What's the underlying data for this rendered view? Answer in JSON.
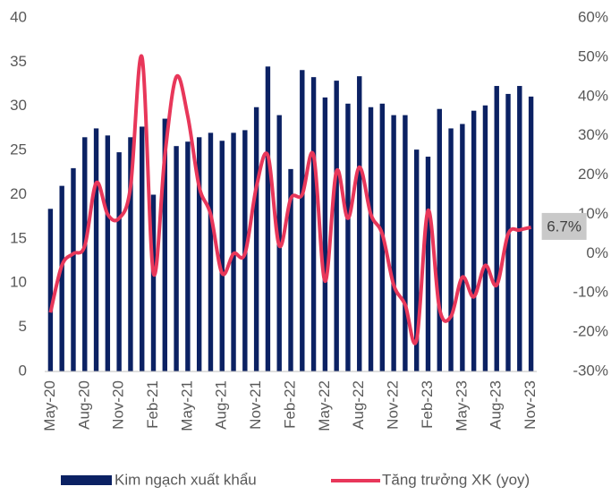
{
  "chart_data": {
    "type": "bar_line",
    "categories": [
      "May-20",
      null,
      null,
      "Aug-20",
      null,
      null,
      "Nov-20",
      null,
      null,
      "Feb-21",
      null,
      null,
      "May-21",
      null,
      null,
      "Aug-21",
      null,
      null,
      "Nov-21",
      null,
      null,
      "Feb-22",
      null,
      null,
      "May-22",
      null,
      null,
      "Aug-22",
      null,
      null,
      "Nov-22",
      null,
      null,
      "Feb-23",
      null,
      null,
      "May-23",
      null,
      null,
      "Aug-23",
      null,
      null,
      "Nov-23"
    ],
    "series": [
      {
        "name": "Kim ngạch xuất khẩu",
        "type": "bar",
        "color": "#0b2163",
        "axis": "y",
        "values": [
          18.4,
          21,
          23,
          26.5,
          27.5,
          26.7,
          24.8,
          26.5,
          27.7,
          20,
          28.6,
          25.5,
          26,
          26.5,
          27,
          26.1,
          27,
          27.3,
          29.9,
          34.5,
          29,
          22.9,
          34.1,
          33.3,
          31,
          32.9,
          30.3,
          33.4,
          29.9,
          30.3,
          29,
          29,
          25.1,
          24.3,
          29.7,
          27.5,
          28,
          29.5,
          30.1,
          32.3,
          31.4,
          32.3,
          31.1
        ]
      },
      {
        "name": "Tăng trưởng XK (yoy)",
        "type": "line",
        "color": "#e8375a",
        "axis": "y2",
        "values": [
          -15,
          -3,
          0,
          2,
          18,
          10,
          9,
          17,
          50,
          -5,
          25,
          45,
          35,
          17,
          10,
          -5,
          0,
          0,
          17,
          25,
          2,
          14,
          15,
          25,
          -7,
          21,
          9,
          22,
          10,
          5,
          -8,
          -13,
          -22,
          11,
          -14,
          -16,
          -6,
          -11,
          -3,
          -8,
          5,
          6,
          6.7
        ],
        "value_labels": [
          null,
          null,
          null,
          null,
          null,
          null,
          null,
          null,
          null,
          null,
          null,
          null,
          null,
          null,
          null,
          null,
          null,
          null,
          null,
          null,
          null,
          null,
          null,
          null,
          null,
          null,
          null,
          null,
          null,
          null,
          null,
          null,
          null,
          null,
          null,
          null,
          null,
          null,
          null,
          null,
          null,
          null,
          "6.7%"
        ]
      }
    ],
    "ylim": [
      0,
      40
    ],
    "yticks": [
      0,
      5,
      10,
      15,
      20,
      25,
      30,
      35,
      40
    ],
    "y2lim": [
      -30,
      60
    ],
    "y2ticks": [
      {
        "value": -30,
        "label": "-30%"
      },
      {
        "value": -20,
        "label": "-20%"
      },
      {
        "value": -10,
        "label": "-10%"
      },
      {
        "value": 0,
        "label": "0%"
      },
      {
        "value": 10,
        "label": "10%"
      },
      {
        "value": 20,
        "label": "20%"
      },
      {
        "value": 30,
        "label": "30%"
      },
      {
        "value": 40,
        "label": "40%"
      },
      {
        "value": 50,
        "label": "50%"
      },
      {
        "value": 60,
        "label": "60%"
      }
    ],
    "grid": false,
    "legend": "bottom"
  }
}
